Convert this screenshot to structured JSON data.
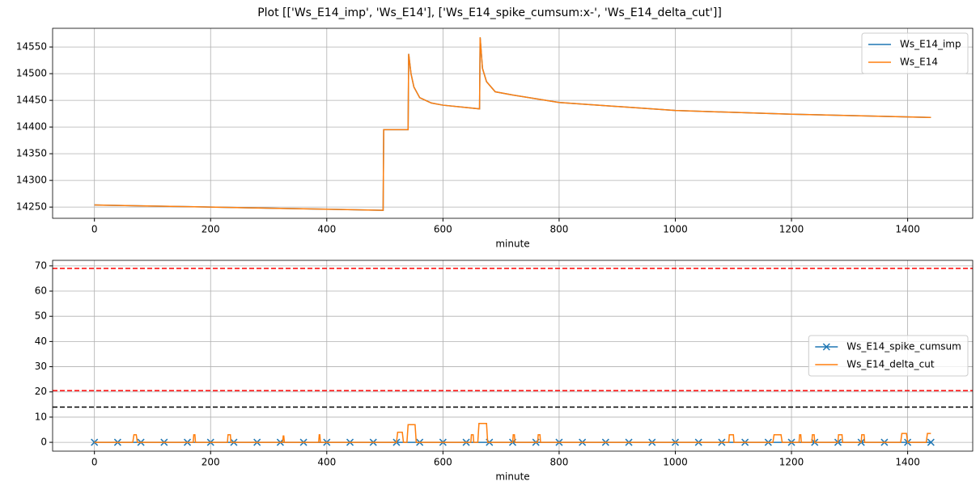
{
  "title": "Plot [['Ws_E14_imp', 'Ws_E14'], ['Ws_E14_spike_cumsum:x-', 'Ws_E14_delta_cut']]",
  "chart_data": [
    {
      "type": "line",
      "xlabel": "minute",
      "grid": true,
      "legend": "upper right",
      "xlim": [
        -72,
        1512
      ],
      "xticks": [
        0,
        200,
        400,
        600,
        800,
        1000,
        1200,
        1400
      ],
      "ylim": [
        14229,
        14585
      ],
      "yticks": [
        14250,
        14300,
        14350,
        14400,
        14450,
        14500,
        14550
      ],
      "series": [
        {
          "name": "Ws_E14_imp",
          "color": "#1f77b4",
          "x": [
            0,
            100,
            200,
            300,
            400,
            497,
            498,
            540,
            541,
            545,
            550,
            560,
            580,
            600,
            663,
            664,
            668,
            675,
            690,
            720,
            800,
            1000,
            1200,
            1440
          ],
          "values": [
            14254,
            14252,
            14250,
            14248,
            14246,
            14244,
            14395,
            14395,
            14537,
            14500,
            14475,
            14455,
            14445,
            14441,
            14434,
            14568,
            14510,
            14485,
            14466,
            14460,
            14446,
            14431,
            14424,
            14418
          ]
        },
        {
          "name": "Ws_E14",
          "color": "#ff7f0e",
          "x": [
            0,
            100,
            200,
            300,
            400,
            497,
            498,
            540,
            541,
            545,
            550,
            560,
            580,
            600,
            663,
            664,
            668,
            675,
            690,
            720,
            800,
            1000,
            1200,
            1440
          ],
          "values": [
            14254,
            14252,
            14250,
            14248,
            14246,
            14244,
            14395,
            14395,
            14537,
            14500,
            14475,
            14455,
            14445,
            14441,
            14434,
            14568,
            14510,
            14485,
            14466,
            14460,
            14446,
            14431,
            14424,
            14418
          ]
        }
      ]
    },
    {
      "type": "line",
      "xlabel": "minute",
      "grid": true,
      "legend": "center right",
      "xlim": [
        -72,
        1512
      ],
      "xticks": [
        0,
        200,
        400,
        600,
        800,
        1000,
        1200,
        1400
      ],
      "ylim": [
        -3.5,
        72.2
      ],
      "yticks": [
        0,
        10,
        20,
        30,
        40,
        50,
        60,
        70
      ],
      "hlines": [
        {
          "value": 69,
          "color": "red"
        },
        {
          "value": 20.5,
          "color": "red"
        },
        {
          "value": 14,
          "color": "black"
        }
      ],
      "series": [
        {
          "name": "Ws_E14_spike_cumsum",
          "color": "#1f77b4",
          "marker": "x",
          "x": [
            0,
            40,
            80,
            120,
            160,
            200,
            240,
            280,
            320,
            360,
            400,
            440,
            480,
            520,
            560,
            600,
            640,
            680,
            720,
            760,
            800,
            840,
            880,
            920,
            960,
            1000,
            1040,
            1080,
            1120,
            1160,
            1200,
            1240,
            1280,
            1320,
            1360,
            1400,
            1440
          ],
          "values": [
            0,
            0,
            0,
            0,
            0,
            0,
            0,
            0,
            0,
            0,
            0,
            0,
            0,
            0,
            0,
            0,
            0,
            0,
            0,
            0,
            0,
            0,
            0,
            0,
            0,
            0,
            0,
            0,
            0,
            0,
            0,
            0,
            0,
            0,
            0,
            0,
            0
          ]
        },
        {
          "name": "Ws_E14_delta_cut",
          "color": "#ff7f0e",
          "x": [
            0,
            66,
            68,
            72,
            74,
            170,
            171,
            173,
            174,
            229,
            230,
            234,
            235,
            324,
            325,
            326,
            327,
            386,
            387,
            388,
            389,
            520,
            522,
            530,
            532,
            538,
            540,
            552,
            554,
            648,
            649,
            652,
            653,
            660,
            662,
            675,
            677,
            720,
            721,
            723,
            724,
            763,
            764,
            767,
            768,
            1092,
            1093,
            1100,
            1101,
            1168,
            1170,
            1182,
            1184,
            1213,
            1214,
            1216,
            1217,
            1235,
            1236,
            1239,
            1240,
            1280,
            1281,
            1287,
            1288,
            1320,
            1321,
            1325,
            1326,
            1388,
            1390,
            1398,
            1400,
            1432,
            1434,
            1440
          ],
          "values": [
            0,
            0,
            3,
            3,
            0,
            0,
            3,
            3,
            0,
            0,
            3,
            3,
            0,
            0,
            2.5,
            2.5,
            0,
            0,
            3,
            3,
            0,
            0,
            4,
            4,
            0,
            0,
            7,
            7,
            0,
            0,
            3,
            3,
            0,
            0,
            7.5,
            7.5,
            0,
            0,
            3,
            3,
            0,
            0,
            3,
            3,
            0,
            0,
            3,
            3,
            0,
            0,
            3,
            3,
            0,
            0,
            3,
            3,
            0,
            0,
            3,
            3,
            0,
            0,
            3,
            3,
            0,
            0,
            3,
            3,
            0,
            0,
            3.5,
            3.5,
            0,
            0,
            3.5,
            3.5
          ]
        }
      ]
    }
  ]
}
